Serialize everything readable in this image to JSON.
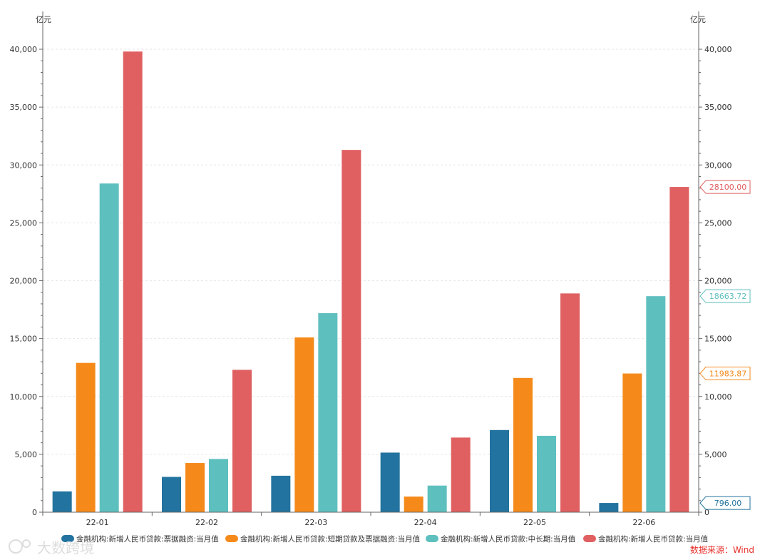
{
  "chart_data": {
    "type": "bar",
    "categories": [
      "22-01",
      "22-02",
      "22-03",
      "22-04",
      "22-05",
      "22-06"
    ],
    "series": [
      {
        "name": "金融机构:新增人民币贷款:票据融资:当月值",
        "color": "#22739f",
        "values": [
          1800,
          3050,
          3150,
          5150,
          7100,
          796
        ]
      },
      {
        "name": "金融机构:新增人民币贷款:短期贷款及票据融资:当月值",
        "color": "#f58a1b",
        "values": [
          12900,
          4250,
          15100,
          1350,
          11600,
          11983.87
        ]
      },
      {
        "name": "金融机构:新增人民币贷款:中长期:当月值",
        "color": "#5ebfbf",
        "values": [
          28400,
          4600,
          17200,
          2300,
          6600,
          18663.72
        ]
      },
      {
        "name": "金融机构:新增人民币贷款:当月值",
        "color": "#e06062",
        "values": [
          39800,
          12300,
          31300,
          6450,
          18900,
          28100
        ]
      }
    ],
    "ylim": [
      0,
      40000
    ],
    "yticks": [
      0,
      5000,
      10000,
      15000,
      20000,
      25000,
      30000,
      35000,
      40000
    ],
    "ytick_labels": [
      "0",
      "5,000",
      "10,000",
      "15,000",
      "20,000",
      "25,000",
      "30,000",
      "35,000",
      "40,000"
    ],
    "left_unit": "亿元",
    "right_unit": "亿元",
    "last_value_tags": [
      {
        "label": "28100.00",
        "value": 28100,
        "color": "#e06062"
      },
      {
        "label": "18663.72",
        "value": 18663.72,
        "color": "#5ebfbf"
      },
      {
        "label": "11983.87",
        "value": 11983.87,
        "color": "#f58a1b"
      },
      {
        "label": "796.00",
        "value": 796,
        "color": "#22739f"
      }
    ],
    "legend_position": "bottom",
    "grid": true
  },
  "source": {
    "label": "数据来源：Wind",
    "color": "#e8302c"
  },
  "watermark": {
    "label": "大数跨境"
  }
}
